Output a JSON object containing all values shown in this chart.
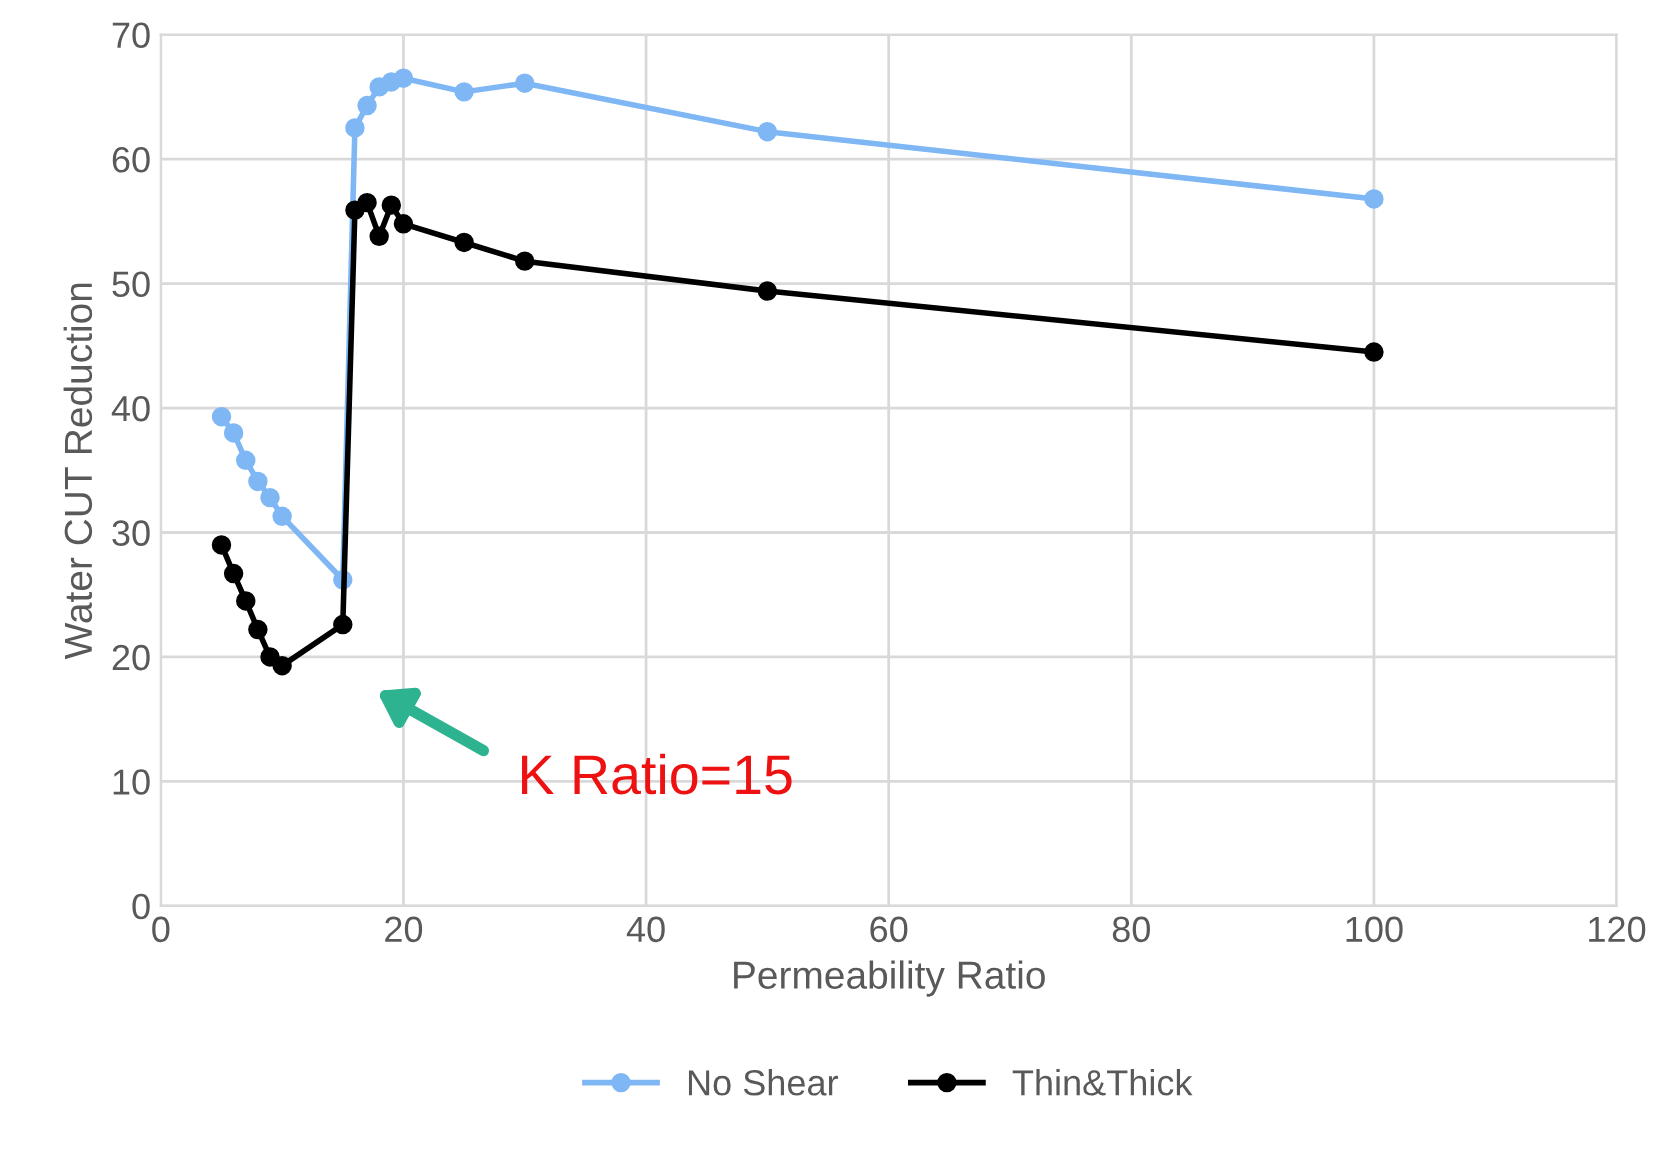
{
  "chart_data": {
    "type": "line",
    "xlabel": "Permeability Ratio",
    "ylabel": "Water CUT Reduction",
    "xlim": [
      0,
      120
    ],
    "xticks": [
      0,
      20,
      40,
      60,
      80,
      100,
      120
    ],
    "ylim": [
      0,
      70
    ],
    "yticks": [
      0,
      10,
      20,
      30,
      40,
      50,
      60,
      70
    ],
    "grid": true,
    "legend": "bottom",
    "marker": "circle",
    "line_style": "solid",
    "series": [
      {
        "name": "No Shear",
        "color": "#7fb7f5",
        "x": [
          5,
          6,
          7,
          8,
          9,
          10,
          15,
          16,
          17,
          18,
          19,
          20,
          25,
          30,
          50,
          100
        ],
        "values": [
          39.3,
          38,
          35.8,
          34.1,
          32.8,
          31.3,
          26.2,
          62.5,
          64.3,
          65.8,
          66.2,
          66.5,
          65.4,
          66.1,
          62.2,
          56.8
        ]
      },
      {
        "name": "Thin&Thick",
        "color": "#000000",
        "x": [
          5,
          6,
          7,
          8,
          9,
          10,
          15,
          16,
          17,
          18,
          19,
          20,
          25,
          30,
          50,
          100
        ],
        "values": [
          29,
          26.7,
          24.5,
          22.2,
          20,
          19.3,
          22.6,
          55.9,
          56.5,
          53.8,
          56.3,
          54.8,
          53.3,
          51.8,
          49.4,
          44.5
        ]
      }
    ],
    "annotations": [
      "K Ratio=15"
    ]
  }
}
